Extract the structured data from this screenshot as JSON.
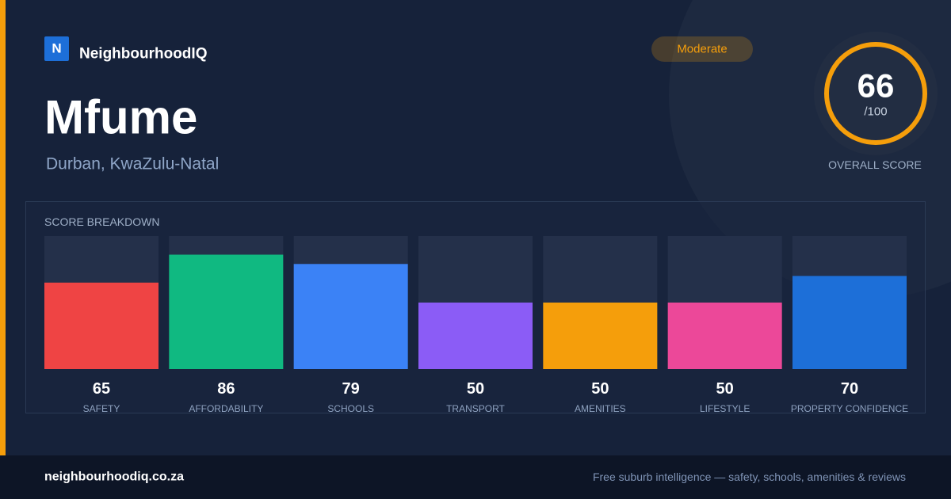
{
  "header": {
    "logo": "N",
    "brand": "NeighbourhoodIQ",
    "badge": "Moderate"
  },
  "suburb": {
    "name": "Mfume",
    "location": "Durban, KwaZulu-Natal"
  },
  "overall": {
    "score": 66,
    "max_label": "/100",
    "label": "OVERALL SCORE"
  },
  "chart_data": {
    "type": "bar",
    "title": "SCORE BREAKDOWN",
    "categories": [
      "SAFETY",
      "AFFORDABILITY",
      "SCHOOLS",
      "TRANSPORT",
      "AMENITIES",
      "LIFESTYLE",
      "PROPERTY CONFIDENCE"
    ],
    "values": [
      65,
      86,
      79,
      50,
      50,
      50,
      70
    ],
    "colors": [
      "#ef4444",
      "#10b981",
      "#3b82f6",
      "#8b5cf6",
      "#f59e0b",
      "#ec4899",
      "#1d6fd8"
    ],
    "ylim": [
      0,
      100
    ]
  },
  "footer": {
    "site": "neighbourhoodiq.co.za",
    "tagline": "Free suburb intelligence — safety, schools, amenities & reviews"
  }
}
